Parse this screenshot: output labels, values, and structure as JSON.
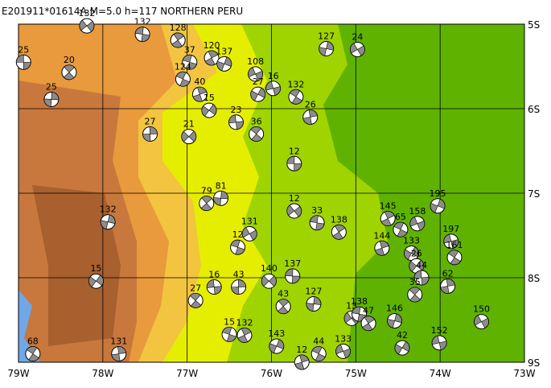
{
  "map": {
    "title": "E201911*01614A M=5.0 h=117 NORTHERN PERU",
    "xlim": [
      -79,
      -73
    ],
    "ylim": [
      -9,
      -5
    ],
    "xticks": [
      {
        "value": -79,
        "label": "79W"
      },
      {
        "value": -78,
        "label": "78W"
      },
      {
        "value": -77,
        "label": "77W"
      },
      {
        "value": -76,
        "label": "76W"
      },
      {
        "value": -75,
        "label": "75W"
      },
      {
        "value": -74,
        "label": "74W"
      },
      {
        "value": -73,
        "label": "73W"
      }
    ],
    "yticks": [
      {
        "value": -5,
        "label": "5S"
      },
      {
        "value": -6,
        "label": "6S"
      },
      {
        "value": -7,
        "label": "7S"
      },
      {
        "value": -8,
        "label": "8S"
      },
      {
        "value": -9,
        "label": "9S"
      }
    ],
    "events": [
      {
        "depth": 25,
        "lon": -78.94,
        "lat": -5.45
      },
      {
        "depth": 20,
        "lon": -78.4,
        "lat": -5.57
      },
      {
        "depth": 25,
        "lon": -78.61,
        "lat": -5.89
      },
      {
        "depth": 132,
        "lon": -78.19,
        "lat": -5.02
      },
      {
        "depth": 132,
        "lon": -77.53,
        "lat": -5.12
      },
      {
        "depth": 128,
        "lon": -77.11,
        "lat": -5.19
      },
      {
        "depth": 127,
        "lon": -75.35,
        "lat": -5.29
      },
      {
        "depth": 24,
        "lon": -74.98,
        "lat": -5.3
      },
      {
        "depth": 37,
        "lon": -76.97,
        "lat": -5.45
      },
      {
        "depth": 120,
        "lon": -76.71,
        "lat": -5.4
      },
      {
        "depth": 137,
        "lon": -76.56,
        "lat": -5.47
      },
      {
        "depth": 108,
        "lon": -76.19,
        "lat": -5.59
      },
      {
        "depth": 124,
        "lon": -77.05,
        "lat": -5.65
      },
      {
        "depth": 40,
        "lon": -76.85,
        "lat": -5.83
      },
      {
        "depth": 27,
        "lon": -76.16,
        "lat": -5.83
      },
      {
        "depth": 16,
        "lon": -75.98,
        "lat": -5.76
      },
      {
        "depth": 132,
        "lon": -75.71,
        "lat": -5.86
      },
      {
        "depth": 26,
        "lon": -75.54,
        "lat": -6.1
      },
      {
        "depth": 15,
        "lon": -76.74,
        "lat": -6.02
      },
      {
        "depth": 23,
        "lon": -76.42,
        "lat": -6.16
      },
      {
        "depth": 36,
        "lon": -76.18,
        "lat": -6.3
      },
      {
        "depth": 27,
        "lon": -77.44,
        "lat": -6.3
      },
      {
        "depth": 21,
        "lon": -76.98,
        "lat": -6.33
      },
      {
        "depth": 12,
        "lon": -75.73,
        "lat": -6.65
      },
      {
        "depth": 79,
        "lon": -76.77,
        "lat": -7.12
      },
      {
        "depth": 81,
        "lon": -76.6,
        "lat": -7.06
      },
      {
        "depth": 12,
        "lon": -75.73,
        "lat": -7.21
      },
      {
        "depth": 33,
        "lon": -75.46,
        "lat": -7.35
      },
      {
        "depth": 138,
        "lon": -75.2,
        "lat": -7.46
      },
      {
        "depth": 132,
        "lon": -77.94,
        "lat": -7.34
      },
      {
        "depth": 131,
        "lon": -76.26,
        "lat": -7.48
      },
      {
        "depth": 12,
        "lon": -76.4,
        "lat": -7.64
      },
      {
        "depth": 145,
        "lon": -74.62,
        "lat": -7.3
      },
      {
        "depth": 195,
        "lon": -74.03,
        "lat": -7.15
      },
      {
        "depth": 158,
        "lon": -74.27,
        "lat": -7.36
      },
      {
        "depth": 65,
        "lon": -74.47,
        "lat": -7.43
      },
      {
        "depth": 144,
        "lon": -74.69,
        "lat": -7.65
      },
      {
        "depth": 133,
        "lon": -74.34,
        "lat": -7.71
      },
      {
        "depth": 197,
        "lon": -73.87,
        "lat": -7.57
      },
      {
        "depth": 161,
        "lon": -73.83,
        "lat": -7.76
      },
      {
        "depth": 62,
        "lon": -73.91,
        "lat": -8.1
      },
      {
        "depth": 15,
        "lon": -78.08,
        "lat": -8.04
      },
      {
        "depth": 16,
        "lon": -76.68,
        "lat": -8.11
      },
      {
        "depth": 27,
        "lon": -76.9,
        "lat": -8.27
      },
      {
        "depth": 43,
        "lon": -76.39,
        "lat": -8.11
      },
      {
        "depth": 140,
        "lon": -76.03,
        "lat": -8.04
      },
      {
        "depth": 137,
        "lon": -75.75,
        "lat": -7.98
      },
      {
        "depth": 43,
        "lon": -75.86,
        "lat": -8.34
      },
      {
        "depth": 127,
        "lon": -75.5,
        "lat": -8.31
      },
      {
        "depth": 13,
        "lon": -75.05,
        "lat": -8.48
      },
      {
        "depth": 138,
        "lon": -74.96,
        "lat": -8.43
      },
      {
        "depth": 47,
        "lon": -74.85,
        "lat": -8.54
      },
      {
        "depth": 146,
        "lon": -74.54,
        "lat": -8.51
      },
      {
        "depth": 150,
        "lon": -73.51,
        "lat": -8.52
      },
      {
        "depth": 15,
        "lon": -76.5,
        "lat": -8.67
      },
      {
        "depth": 132,
        "lon": -76.32,
        "lat": -8.68
      },
      {
        "depth": 143,
        "lon": -75.94,
        "lat": -8.81
      },
      {
        "depth": 133,
        "lon": -75.15,
        "lat": -8.87
      },
      {
        "depth": 44,
        "lon": -75.44,
        "lat": -8.9
      },
      {
        "depth": 12,
        "lon": -75.64,
        "lat": -9.0
      },
      {
        "depth": 42,
        "lon": -74.45,
        "lat": -8.83
      },
      {
        "depth": 152,
        "lon": -74.01,
        "lat": -8.77
      },
      {
        "depth": 68,
        "lon": -78.83,
        "lat": -8.9
      },
      {
        "depth": 131,
        "lon": -77.81,
        "lat": -8.9
      },
      {
        "depth": 26,
        "lon": -74.28,
        "lat": -7.86
      },
      {
        "depth": 44,
        "lon": -74.22,
        "lat": -8.0
      },
      {
        "depth": 35,
        "lon": -74.3,
        "lat": -8.2
      }
    ]
  }
}
